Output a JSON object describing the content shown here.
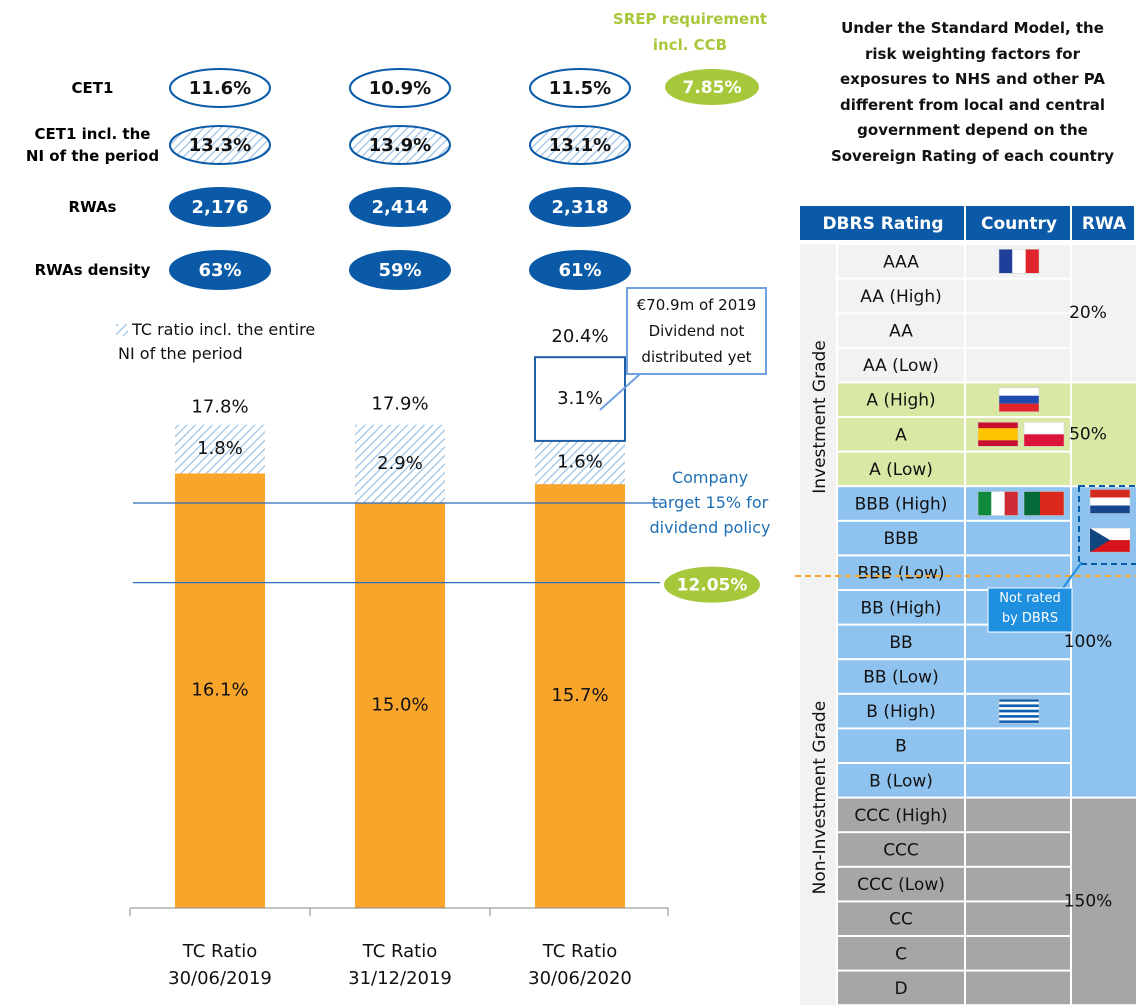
{
  "chart_data": {
    "type": "bar",
    "stacked": true,
    "categories": [
      "TC Ratio\n30/06/2019",
      "TC Ratio\n31/12/2019",
      "TC Ratio\n30/06/2020"
    ],
    "series": [
      {
        "color": "#f9a52b",
        "values": [
          16.1,
          15.0,
          15.7
        ],
        "value_labels": [
          "16.1%",
          "15.0%",
          "15.7%"
        ]
      },
      {
        "name": "TC ratio incl. the entire\nNI of the period",
        "color": "#9dc3e6",
        "hatched": true,
        "values": [
          1.8,
          2.9,
          1.6
        ],
        "value_labels": [
          "1.8%",
          "2.9%",
          "1.6%"
        ]
      },
      {
        "color": "#1f5fa8",
        "outlined": true,
        "values": [
          null,
          null,
          3.1
        ],
        "value_labels": [
          null,
          null,
          "3.1%"
        ]
      }
    ],
    "totals": [
      17.8,
      17.9,
      20.4
    ],
    "total_labels": [
      "17.8%",
      "17.9%",
      "20.4%"
    ],
    "ylim": [
      0,
      22
    ],
    "reference_lines": [
      {
        "value": 15,
        "label": "Company\ntarget 15% for\ndividend policy",
        "color": "#1f6fb5"
      },
      {
        "value": 12.05,
        "label": "12.05%",
        "color": "#a8c83c"
      }
    ],
    "annotation": "€70.9m of 2019\nDividend not\ndistributed yet"
  },
  "kpis": {
    "rows": [
      {
        "label": "CET1",
        "style": "outline",
        "values": [
          "11.6%",
          "10.9%",
          "11.5%"
        ]
      },
      {
        "label": "CET1 incl. the\nNI of the period",
        "style": "hatch",
        "values": [
          "13.3%",
          "13.9%",
          "13.1%"
        ]
      },
      {
        "label": "RWAs",
        "style": "filled",
        "values": [
          "2,176",
          "2,414",
          "2,318"
        ]
      },
      {
        "label": "RWAs density",
        "style": "filled",
        "values": [
          "63%",
          "59%",
          "61%"
        ]
      }
    ]
  },
  "srep": {
    "title": "SREP requirement\nincl. CCB",
    "cet1": "7.85%"
  },
  "sovereign": {
    "note": "Under the Standard Model, the\nrisk weighting factors for\nexposures to NHS and other PA\ndifferent from local and central\ngovernment depend on the\nSovereign Rating of each country",
    "headers": [
      "DBRS Rating",
      "Country",
      "RWA"
    ],
    "grades": [
      "Investment Grade",
      "Non-Investment Grade"
    ],
    "groups": [
      {
        "rwa": "20%",
        "ratings": [
          "AAA",
          "AA (High)",
          "AA",
          "AA (Low)"
        ]
      },
      {
        "rwa": "50%",
        "ratings": [
          "A (High)",
          "A",
          "A (Low)"
        ]
      },
      {
        "rwa": "100%",
        "ratings": [
          "BBB (High)",
          "BBB",
          "BBB (Low)",
          "BB (High)",
          "BB",
          "BB (Low)",
          "B (High)",
          "B",
          "B (Low)"
        ]
      },
      {
        "rwa": "150%",
        "ratings": [
          "CCC (High)",
          "CCC",
          "CCC (Low)",
          "CC",
          "C",
          "D"
        ]
      }
    ],
    "not_rated": "Not rated\nby DBRS"
  }
}
